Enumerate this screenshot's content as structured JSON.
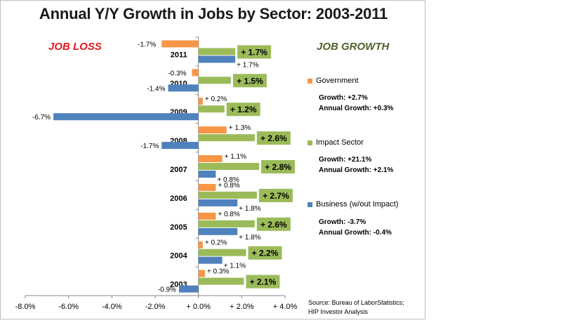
{
  "title": "Annual Y/Y Growth in Jobs by Sector:  2003-2011",
  "annotations": {
    "job_loss": "JOB LOSS",
    "job_growth": "JOB GROWTH"
  },
  "legend": [
    {
      "name": "Government",
      "color": "#f79646",
      "growth": "Growth: +2.7%",
      "annual": "Annual Growth: +0.3%"
    },
    {
      "name": "Impact Sector",
      "color": "#9bbb59",
      "growth": "Growth: +21.1%",
      "annual": "Annual Growth: +2.1%"
    },
    {
      "name": "Business (w/out Impact)",
      "color": "#4f81bd",
      "growth": "Growth: -3.7%",
      "annual": "Annual Growth: -0.4%"
    }
  ],
  "source": {
    "line1": "Source: Bureau of LaborStatistics;",
    "line2": "HIP Investor Analysis"
  },
  "chart_data": {
    "type": "bar",
    "orientation": "horizontal",
    "categories": [
      "2011",
      "2010",
      "2009",
      "2008",
      "2007",
      "2006",
      "2005",
      "2004",
      "2003"
    ],
    "series": [
      {
        "name": "Government",
        "color": "#f79646",
        "values": [
          -1.7,
          -0.3,
          0.2,
          1.3,
          1.1,
          0.8,
          0.8,
          0.2,
          0.3
        ],
        "labels": [
          "-1.7%",
          "-0.3%",
          "+ 0.2%",
          "+ 1.3%",
          "+ 1.1%",
          "+ 0.8%",
          "+ 0.8%",
          "+ 0.2%",
          "+ 0.3%"
        ]
      },
      {
        "name": "Impact Sector",
        "color": "#9bbb59",
        "values": [
          1.7,
          1.5,
          1.2,
          2.6,
          2.8,
          2.7,
          2.6,
          2.2,
          2.1
        ],
        "labels": [
          "+ 1.7%",
          "+ 1.5%",
          "+ 1.2%",
          "+ 2.6%",
          "+ 2.8%",
          "+ 2.7%",
          "+ 2.6%",
          "+ 2.2%",
          "+ 2.1%"
        ]
      },
      {
        "name": "Business (w/out Impact)",
        "color": "#4f81bd",
        "values": [
          1.7,
          -1.4,
          -6.7,
          -1.7,
          0.8,
          1.8,
          1.8,
          1.1,
          -0.9
        ],
        "labels": [
          "+ 1.7%",
          "-1.4%",
          "-6.7%",
          "-1.7%",
          "+ 0.8%",
          "+ 1.8%",
          "+ 1.8%",
          "+ 1.1%",
          "-0.9%"
        ]
      }
    ],
    "xlim": [
      -8.0,
      4.0
    ],
    "xticks": [
      -8.0,
      -6.0,
      -4.0,
      -2.0,
      0.0,
      2.0,
      4.0
    ],
    "xtick_labels": [
      "-8.0%",
      "-6.0%",
      "-4.0%",
      "-2.0%",
      "+ 0.0%",
      "+ 2.0%",
      "+ 4.0%"
    ],
    "xlabel": "",
    "ylabel": "",
    "grid": false,
    "legend_position": "right"
  }
}
